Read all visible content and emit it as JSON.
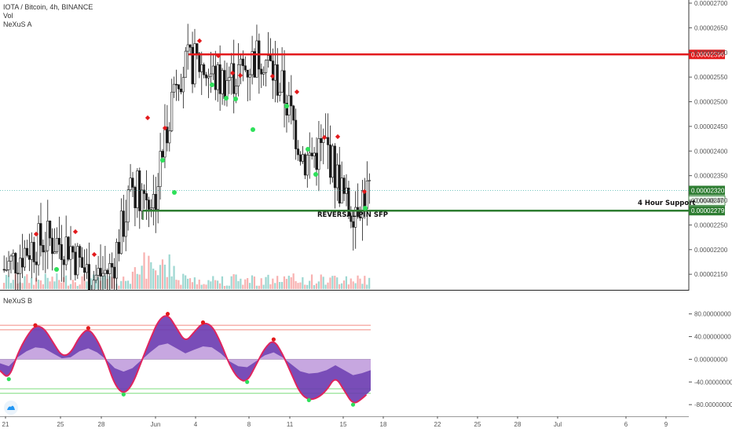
{
  "legend": {
    "symbol": "IOTA / Bitcoin, 4h, BINANCE",
    "vol": "Vol",
    "indicator_a": "NeXuS A",
    "indicator_b": "NeXuS B"
  },
  "annotations": {
    "support": "4 Hour Support",
    "pin": "REVERSAL PIN SFP"
  },
  "colors": {
    "up": "#26a69a",
    "down": "#ef5350",
    "candle": "#1b1b1b",
    "resistance": "#e31a1c",
    "support": "#2e7d32",
    "osc_fill": "#6a3ab0",
    "osc_light": "#d5b7e6"
  },
  "chart_data": [
    {
      "type": "candlestick",
      "title": "IOTA / Bitcoin, 4h, BINANCE",
      "x_ticks": [
        "21",
        "25",
        "28",
        "Jun",
        "4",
        "8",
        "11",
        "15",
        "18",
        "22",
        "25",
        "28",
        "Jul",
        "6",
        "9"
      ],
      "y_ticks": [
        "0.00002700",
        "0.00002650",
        "0.00002600",
        "0.00002550",
        "0.00002500",
        "0.00002450",
        "0.00002400",
        "0.00002350",
        "0.00002300",
        "0.00002250",
        "0.00002200",
        "0.00002150"
      ],
      "ylim": [
        2.12e-05,
        2.7e-05
      ],
      "resistance": {
        "value": 2.596e-05,
        "label": "0.00002596"
      },
      "support": {
        "value": 2.279e-05,
        "label": "0.00002279"
      },
      "last_price": {
        "value": 2.32e-05,
        "label": "0.00002320"
      },
      "countdown": {
        "price_short": "0.000",
        "time": "48:47"
      },
      "close_path": [
        [
          2.16e-05,
          2.13e-05
        ],
        [
          2.2e-05,
          2.24e-05
        ],
        [
          2.22e-05,
          2.2e-05
        ],
        [
          2.21e-05,
          2.19e-05
        ],
        [
          2.14e-05,
          2.13e-05
        ],
        [
          2.16e-05,
          2.31e-05
        ],
        [
          2.33e-05,
          2.46e-05
        ],
        [
          2.3e-05,
          2.43e-05
        ],
        [
          2.56e-05,
          2.67e-05
        ],
        [
          2.58e-05,
          2.55e-05
        ],
        [
          2.54e-05,
          2.5e-05
        ],
        [
          2.56e-05,
          2.43e-05
        ],
        [
          2.6e-05,
          2.54e-05
        ],
        [
          2.52e-05,
          2.47e-05
        ],
        [
          2.38e-05,
          2.42e-05
        ],
        [
          2.41e-05,
          2.34e-05
        ],
        [
          2.28e-05,
          2.3e-05
        ],
        [
          2.32e-05,
          2.3e-05
        ]
      ],
      "signals_up": [
        [
          2.16e-05,
          0
        ],
        [
          2.3e-05,
          0
        ],
        [
          2.5e-05,
          0
        ],
        [
          2.45e-05,
          0
        ],
        [
          2.38e-05,
          0
        ]
      ],
      "signals_down": [
        [
          2.45e-05,
          0
        ],
        [
          2.63e-05,
          0
        ],
        [
          2.52e-05,
          0
        ],
        [
          2.4e-05,
          0
        ],
        [
          2.31e-05,
          0
        ]
      ]
    },
    {
      "type": "area",
      "title": "NeXuS B",
      "y_ticks": [
        "80.00000000",
        "40.00000000",
        "0.00000000",
        "-40.00000000",
        "-80.00000000"
      ],
      "ylim": [
        -95,
        110
      ],
      "upper_bands": [
        60,
        52
      ],
      "lower_bands": [
        -52,
        -60
      ],
      "series": [
        {
          "values": [
            -20,
            -35,
            10,
            40,
            60,
            55,
            30,
            5,
            10,
            40,
            55,
            35,
            0,
            -45,
            -62,
            -45,
            -5,
            35,
            70,
            80,
            55,
            30,
            48,
            65,
            60,
            30,
            -10,
            -35,
            -40,
            -10,
            20,
            35,
            10,
            -25,
            -60,
            -72,
            -68,
            -55,
            -30,
            -55,
            -80,
            -70,
            -55
          ]
        }
      ]
    }
  ]
}
